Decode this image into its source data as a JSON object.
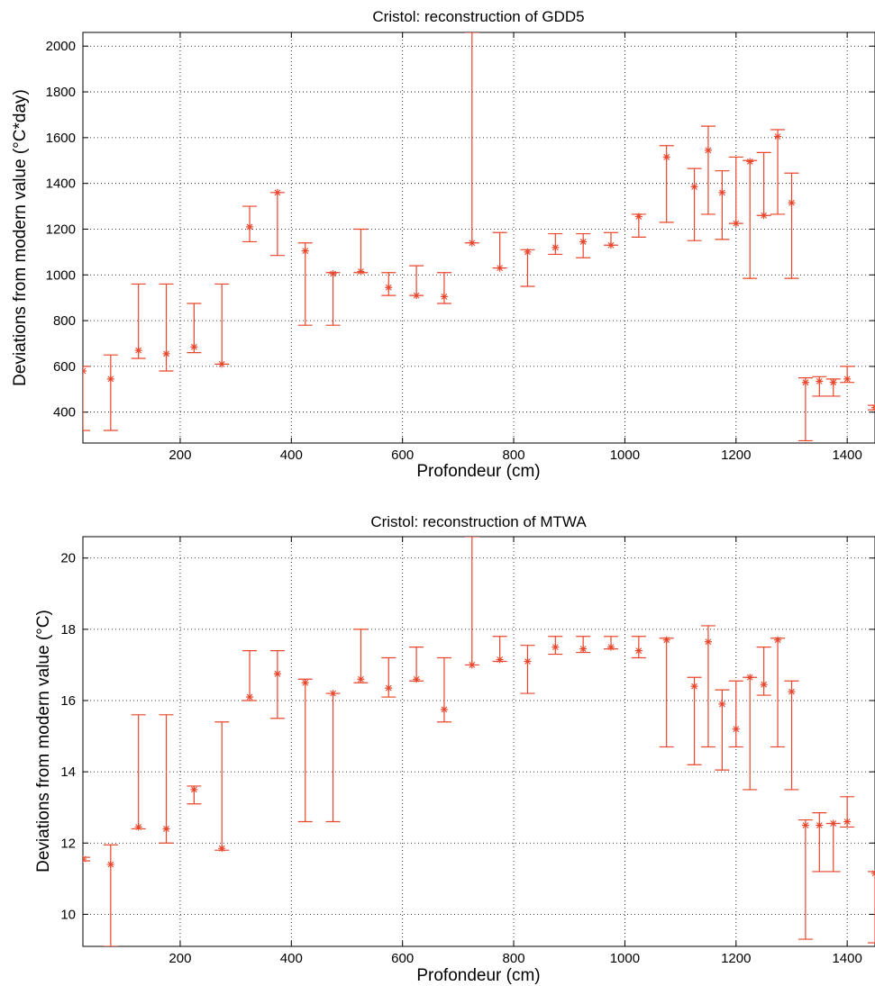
{
  "colors": {
    "series": "#e8462c",
    "axis": "#000000",
    "grid": "#000000",
    "background": "#ffffff"
  },
  "chart_data": [
    {
      "type": "scatter",
      "title": "Cristol: reconstruction of GDD5",
      "xlabel": "Profondeur (cm)",
      "ylabel": "Deviations from modern value (°C*day)",
      "xlim": [
        25,
        1450
      ],
      "ylim": [
        265,
        2060
      ],
      "xticks": [
        200,
        400,
        600,
        800,
        1000,
        1200,
        1400
      ],
      "yticks": [
        400,
        600,
        800,
        1000,
        1200,
        1400,
        1600,
        1800,
        2000
      ],
      "grid": true,
      "marker": "asterisk",
      "error_bars": true,
      "points": [
        {
          "x": 25,
          "y": 580,
          "low": 320,
          "high": 600
        },
        {
          "x": 75,
          "y": 545,
          "low": 320,
          "high": 650
        },
        {
          "x": 125,
          "y": 670,
          "low": 635,
          "high": 960
        },
        {
          "x": 175,
          "y": 655,
          "low": 580,
          "high": 960
        },
        {
          "x": 225,
          "y": 685,
          "low": 660,
          "high": 875
        },
        {
          "x": 275,
          "y": 610,
          "low": 610,
          "high": 960
        },
        {
          "x": 325,
          "y": 1210,
          "low": 1145,
          "high": 1300
        },
        {
          "x": 375,
          "y": 1360,
          "low": 1085,
          "high": 1360
        },
        {
          "x": 425,
          "y": 1105,
          "low": 780,
          "high": 1140
        },
        {
          "x": 475,
          "y": 1005,
          "low": 780,
          "high": 1010
        },
        {
          "x": 525,
          "y": 1015,
          "low": 1010,
          "high": 1200
        },
        {
          "x": 575,
          "y": 945,
          "low": 910,
          "high": 1010
        },
        {
          "x": 625,
          "y": 910,
          "low": 910,
          "high": 1040
        },
        {
          "x": 675,
          "y": 905,
          "low": 875,
          "high": 1010
        },
        {
          "x": 725,
          "y": 1140,
          "low": 1140,
          "high": 2060
        },
        {
          "x": 775,
          "y": 1030,
          "low": 1030,
          "high": 1185
        },
        {
          "x": 825,
          "y": 1100,
          "low": 950,
          "high": 1110
        },
        {
          "x": 875,
          "y": 1120,
          "low": 1090,
          "high": 1180
        },
        {
          "x": 925,
          "y": 1145,
          "low": 1075,
          "high": 1180
        },
        {
          "x": 975,
          "y": 1130,
          "low": 1130,
          "high": 1185
        },
        {
          "x": 1025,
          "y": 1255,
          "low": 1165,
          "high": 1265
        },
        {
          "x": 1075,
          "y": 1515,
          "low": 1230,
          "high": 1565
        },
        {
          "x": 1125,
          "y": 1385,
          "low": 1150,
          "high": 1465
        },
        {
          "x": 1150,
          "y": 1545,
          "low": 1265,
          "high": 1650
        },
        {
          "x": 1175,
          "y": 1360,
          "low": 1155,
          "high": 1455
        },
        {
          "x": 1200,
          "y": 1225,
          "low": 1225,
          "high": 1515
        },
        {
          "x": 1225,
          "y": 1495,
          "low": 985,
          "high": 1500
        },
        {
          "x": 1250,
          "y": 1260,
          "low": 1260,
          "high": 1535
        },
        {
          "x": 1275,
          "y": 1605,
          "low": 1265,
          "high": 1635
        },
        {
          "x": 1300,
          "y": 1315,
          "low": 985,
          "high": 1445
        },
        {
          "x": 1325,
          "y": 530,
          "low": 275,
          "high": 550
        },
        {
          "x": 1350,
          "y": 535,
          "low": 470,
          "high": 555
        },
        {
          "x": 1375,
          "y": 530,
          "low": 470,
          "high": 545
        },
        {
          "x": 1400,
          "y": 545,
          "low": 530,
          "high": 600
        },
        {
          "x": 1450,
          "y": 420,
          "low": 410,
          "high": 430
        }
      ]
    },
    {
      "type": "scatter",
      "title": "Cristol: reconstruction of MTWA",
      "xlabel": "Profondeur (cm)",
      "ylabel": "Deviations from modern value (°C)",
      "xlim": [
        25,
        1450
      ],
      "ylim": [
        9.1,
        20.6
      ],
      "xticks": [
        200,
        400,
        600,
        800,
        1000,
        1200,
        1400
      ],
      "yticks": [
        10,
        12,
        14,
        16,
        18,
        20
      ],
      "grid": true,
      "marker": "asterisk",
      "error_bars": true,
      "points": [
        {
          "x": 25,
          "y": 11.55,
          "low": 11.5,
          "high": 11.6
        },
        {
          "x": 75,
          "y": 11.4,
          "low": 9.1,
          "high": 11.95
        },
        {
          "x": 125,
          "y": 12.45,
          "low": 12.4,
          "high": 15.6
        },
        {
          "x": 175,
          "y": 12.4,
          "low": 12.0,
          "high": 15.6
        },
        {
          "x": 225,
          "y": 13.5,
          "low": 13.1,
          "high": 13.6
        },
        {
          "x": 275,
          "y": 11.85,
          "low": 11.8,
          "high": 15.4
        },
        {
          "x": 325,
          "y": 16.1,
          "low": 16.0,
          "high": 17.4
        },
        {
          "x": 375,
          "y": 16.75,
          "low": 15.5,
          "high": 17.4
        },
        {
          "x": 425,
          "y": 16.5,
          "low": 12.6,
          "high": 16.6
        },
        {
          "x": 475,
          "y": 16.2,
          "low": 12.6,
          "high": 16.2
        },
        {
          "x": 525,
          "y": 16.6,
          "low": 16.5,
          "high": 18.0
        },
        {
          "x": 575,
          "y": 16.35,
          "low": 16.1,
          "high": 17.2
        },
        {
          "x": 625,
          "y": 16.6,
          "low": 16.55,
          "high": 17.5
        },
        {
          "x": 675,
          "y": 15.75,
          "low": 15.4,
          "high": 17.2
        },
        {
          "x": 725,
          "y": 17.0,
          "low": 17.0,
          "high": 20.6
        },
        {
          "x": 775,
          "y": 17.15,
          "low": 17.1,
          "high": 17.8
        },
        {
          "x": 825,
          "y": 17.1,
          "low": 16.2,
          "high": 17.55
        },
        {
          "x": 875,
          "y": 17.5,
          "low": 17.3,
          "high": 17.8
        },
        {
          "x": 925,
          "y": 17.45,
          "low": 17.35,
          "high": 17.8
        },
        {
          "x": 975,
          "y": 17.5,
          "low": 17.45,
          "high": 17.8
        },
        {
          "x": 1025,
          "y": 17.4,
          "low": 17.2,
          "high": 17.8
        },
        {
          "x": 1075,
          "y": 17.7,
          "low": 14.7,
          "high": 17.75
        },
        {
          "x": 1125,
          "y": 16.4,
          "low": 14.2,
          "high": 16.65
        },
        {
          "x": 1150,
          "y": 17.65,
          "low": 14.7,
          "high": 18.1
        },
        {
          "x": 1175,
          "y": 15.9,
          "low": 14.05,
          "high": 16.3
        },
        {
          "x": 1200,
          "y": 15.2,
          "low": 14.7,
          "high": 16.55
        },
        {
          "x": 1225,
          "y": 16.65,
          "low": 13.5,
          "high": 16.65
        },
        {
          "x": 1250,
          "y": 16.45,
          "low": 16.15,
          "high": 17.5
        },
        {
          "x": 1275,
          "y": 17.7,
          "low": 14.7,
          "high": 17.75
        },
        {
          "x": 1300,
          "y": 16.25,
          "low": 13.5,
          "high": 16.55
        },
        {
          "x": 1325,
          "y": 12.5,
          "low": 9.3,
          "high": 12.65
        },
        {
          "x": 1350,
          "y": 12.5,
          "low": 11.2,
          "high": 12.85
        },
        {
          "x": 1375,
          "y": 12.55,
          "low": 11.2,
          "high": 12.55
        },
        {
          "x": 1400,
          "y": 12.6,
          "low": 12.45,
          "high": 13.3
        },
        {
          "x": 1450,
          "y": 11.15,
          "low": 9.2,
          "high": 11.2
        }
      ]
    }
  ]
}
